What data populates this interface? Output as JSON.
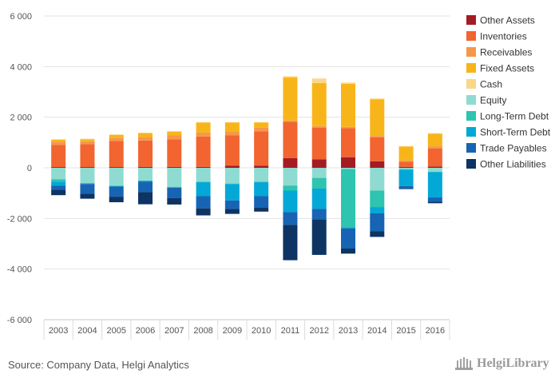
{
  "source": "Source: Company Data, Helgi Analytics",
  "logo_text": "HelgiLibrary",
  "chart_data": {
    "type": "bar",
    "stacked": true,
    "title": "",
    "xlabel": "",
    "ylabel": "",
    "ylim": [
      -6000,
      6000
    ],
    "yticks": [
      6000,
      4000,
      2000,
      0,
      -2000,
      -4000,
      -6000
    ],
    "ytick_labels": [
      "6 000",
      "4 000",
      "2 000",
      "0",
      "-2 000",
      "-4 000",
      "-6 000"
    ],
    "grid": true,
    "legend_position": "right",
    "categories": [
      "2003",
      "2004",
      "2005",
      "2006",
      "2007",
      "2008",
      "2009",
      "2010",
      "2011",
      "2012",
      "2013",
      "2014",
      "2015",
      "2016"
    ],
    "series": [
      {
        "name": "Other Assets",
        "color": "#a31c24",
        "values": [
          30,
          30,
          30,
          40,
          40,
          40,
          80,
          80,
          380,
          340,
          420,
          260,
          40,
          50
        ]
      },
      {
        "name": "Inventories",
        "color": "#f26530",
        "values": [
          880,
          910,
          1030,
          1040,
          1090,
          1200,
          1210,
          1360,
          1440,
          1250,
          1150,
          950,
          200,
          720
        ]
      },
      {
        "name": "Receivables",
        "color": "#f6974a",
        "values": [
          120,
          110,
          120,
          140,
          150,
          150,
          150,
          150,
          50,
          60,
          50,
          50,
          50,
          80
        ]
      },
      {
        "name": "Fixed Assets",
        "color": "#f8b519",
        "values": [
          80,
          80,
          120,
          150,
          150,
          400,
          350,
          200,
          1700,
          1700,
          1700,
          1450,
          550,
          500
        ]
      },
      {
        "name": "Cash",
        "color": "#fcd68a",
        "values": [
          20,
          20,
          20,
          20,
          20,
          20,
          20,
          20,
          50,
          180,
          50,
          30,
          20,
          20
        ]
      },
      {
        "name": "Equity",
        "color": "#8fdbd1",
        "values": [
          -450,
          -600,
          -700,
          -500,
          -750,
          -550,
          -620,
          -550,
          -700,
          -400,
          -50,
          -900,
          -50,
          -150
        ]
      },
      {
        "name": "Long-Term Debt",
        "color": "#2ec4b0",
        "values": [
          -100,
          -20,
          -20,
          -20,
          -20,
          -20,
          -20,
          -20,
          -200,
          -420,
          -2300,
          -650,
          -20,
          -20
        ]
      },
      {
        "name": "Short-Term Debt",
        "color": "#03a8d6",
        "values": [
          -150,
          -20,
          -20,
          -20,
          -20,
          -550,
          -650,
          -550,
          -850,
          -800,
          -40,
          -250,
          -650,
          -1000
        ]
      },
      {
        "name": "Trade Payables",
        "color": "#1764b4",
        "values": [
          -170,
          -380,
          -400,
          -420,
          -400,
          -480,
          -330,
          -460,
          -500,
          -420,
          -800,
          -700,
          -100,
          -170
        ]
      },
      {
        "name": "Other Liabilities",
        "color": "#0d3463",
        "values": [
          -210,
          -200,
          -220,
          -480,
          -260,
          -280,
          -200,
          -150,
          -1400,
          -1400,
          -200,
          -230,
          -20,
          -60
        ]
      }
    ]
  }
}
